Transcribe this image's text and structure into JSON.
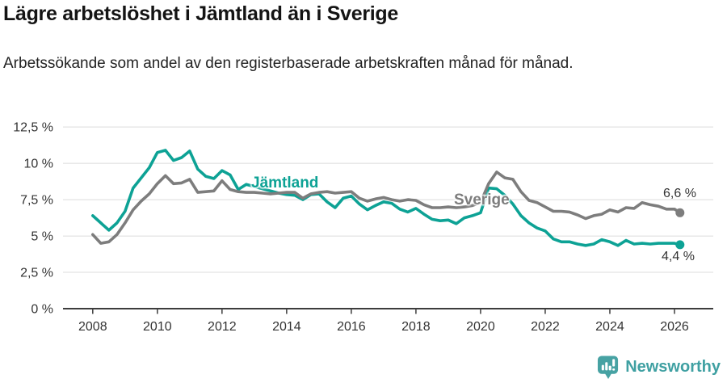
{
  "header": {
    "title": "Lägre arbetslöshet i Jämtland än i Sverige",
    "subtitle": "Arbetssökande som andel av den registerbaserade arbetskraften månad för månad."
  },
  "chart_data": {
    "type": "line",
    "unit": "%",
    "grid": "horizontal",
    "legend_position": "inline-on-lines",
    "x_ticks": [
      2008,
      2010,
      2012,
      2014,
      2016,
      2018,
      2020,
      2022,
      2024,
      2026
    ],
    "y_ticks": [
      {
        "label": "0 %",
        "value": 0
      },
      {
        "label": "2,5 %",
        "value": 2.5
      },
      {
        "label": "5 %",
        "value": 5
      },
      {
        "label": "7,5 %",
        "value": 7.5
      },
      {
        "label": "10 %",
        "value": 10
      },
      {
        "label": "12,5 %",
        "value": 12.5
      }
    ],
    "xlim": [
      2007.08,
      2027.2
    ],
    "ylim": [
      0,
      13.4
    ],
    "x": [
      2008,
      2008.25,
      2008.5,
      2008.75,
      2009,
      2009.25,
      2009.5,
      2009.75,
      2010,
      2010.25,
      2010.5,
      2010.75,
      2011,
      2011.25,
      2011.5,
      2011.75,
      2012,
      2012.25,
      2012.5,
      2012.75,
      2013,
      2013.25,
      2013.5,
      2013.75,
      2014,
      2014.25,
      2014.5,
      2014.75,
      2015,
      2015.25,
      2015.5,
      2015.75,
      2016,
      2016.25,
      2016.5,
      2016.75,
      2017,
      2017.25,
      2017.5,
      2017.75,
      2018,
      2018.25,
      2018.5,
      2018.75,
      2019,
      2019.25,
      2019.5,
      2019.75,
      2020,
      2020.25,
      2020.5,
      2020.75,
      2021,
      2021.25,
      2021.5,
      2021.75,
      2022,
      2022.25,
      2022.5,
      2022.75,
      2023,
      2023.25,
      2023.5,
      2023.75,
      2024,
      2024.25,
      2024.5,
      2024.75,
      2025,
      2025.25,
      2025.5,
      2025.75,
      2026,
      2026.17
    ],
    "series": [
      {
        "name": "Jämtland",
        "color": "#0da295",
        "end_label": "4,4 %",
        "end_value": 4.4,
        "values": [
          6.4,
          5.9,
          5.4,
          5.9,
          6.7,
          8.3,
          9.0,
          9.7,
          10.75,
          10.9,
          10.2,
          10.4,
          10.85,
          9.6,
          9.1,
          8.95,
          9.5,
          9.2,
          8.2,
          8.55,
          8.4,
          8.25,
          8.1,
          7.95,
          7.85,
          7.8,
          7.5,
          7.85,
          7.9,
          7.35,
          6.95,
          7.6,
          7.75,
          7.2,
          6.8,
          7.1,
          7.35,
          7.25,
          6.85,
          6.65,
          6.9,
          6.5,
          6.15,
          6.05,
          6.1,
          5.85,
          6.25,
          6.4,
          6.6,
          8.3,
          8.25,
          7.8,
          7.2,
          6.4,
          5.9,
          5.55,
          5.35,
          4.8,
          4.6,
          4.6,
          4.45,
          4.35,
          4.45,
          4.75,
          4.6,
          4.35,
          4.7,
          4.45,
          4.5,
          4.45,
          4.5,
          4.5,
          4.5,
          4.4
        ]
      },
      {
        "name": "Sverige",
        "color": "#7d7d7d",
        "end_label": "6,6 %",
        "end_value": 6.6,
        "values": [
          5.1,
          4.5,
          4.6,
          5.1,
          5.9,
          6.8,
          7.4,
          7.9,
          8.6,
          9.15,
          8.6,
          8.65,
          8.9,
          8.0,
          8.05,
          8.1,
          8.8,
          8.2,
          8.05,
          8.0,
          8.0,
          7.95,
          7.9,
          7.95,
          8.0,
          8.0,
          7.6,
          7.9,
          8.0,
          8.05,
          7.95,
          8.0,
          8.05,
          7.6,
          7.4,
          7.55,
          7.65,
          7.5,
          7.4,
          7.5,
          7.45,
          7.15,
          6.95,
          6.95,
          7.0,
          6.95,
          7.0,
          7.1,
          7.3,
          8.6,
          9.4,
          9.0,
          8.9,
          8.05,
          7.45,
          7.3,
          7.0,
          6.7,
          6.7,
          6.65,
          6.45,
          6.2,
          6.4,
          6.5,
          6.8,
          6.65,
          6.95,
          6.9,
          7.3,
          7.15,
          7.05,
          6.85,
          6.85,
          6.6
        ]
      }
    ],
    "axis_color": "#3d3d3d",
    "grid_color": "#dcdcdc",
    "tick_label_color": "#333333"
  },
  "footer": {
    "brand": "Newsworthy",
    "brand_color": "#3fa0a2"
  }
}
